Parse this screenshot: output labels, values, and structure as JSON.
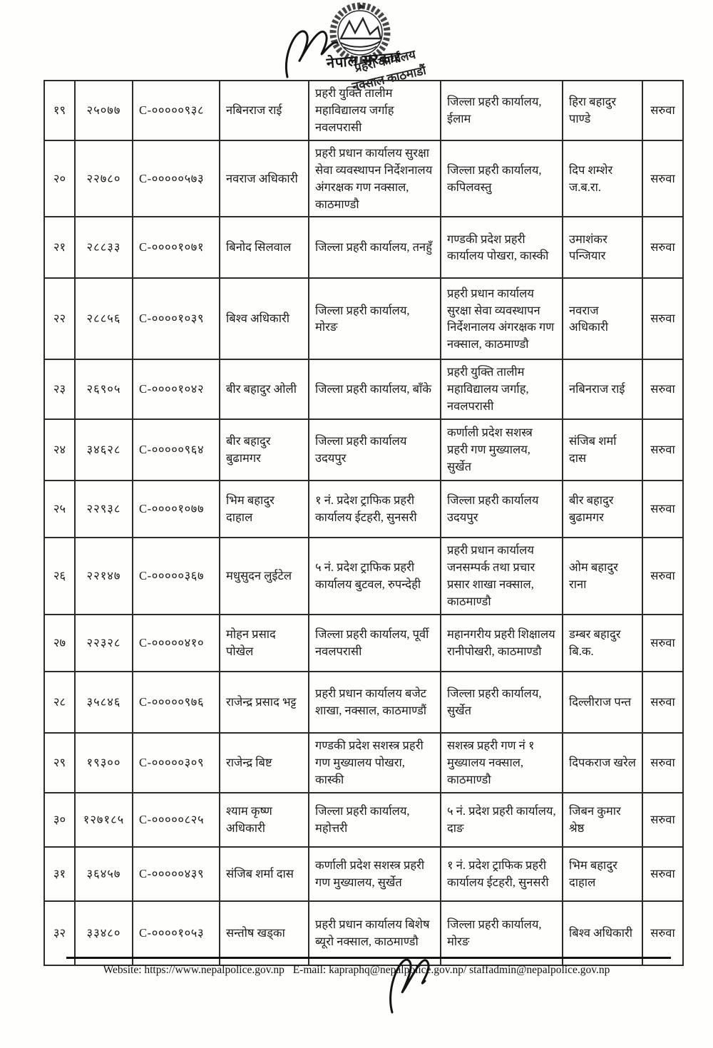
{
  "header": {
    "emblem_caption": "नेपाल सरकार",
    "stamp": {
      "line1": "प्रहरी कार्यालय",
      "line2": "नक्साल काठमाडौं"
    }
  },
  "table": {
    "rows": [
      {
        "sn": "१९",
        "emp_no": "२५०७७",
        "code": "C-०००००९३८",
        "name": "नबिनराज राई",
        "from_office": "प्रहरी युक्ति तालीम महाविद्यालय जर्गाह नवलपरासी",
        "to_office": "जिल्ला प्रहरी कार्यालय, ईलाम",
        "replacement": "हिरा बहादुर पाण्डे",
        "action": "सरुवा"
      },
      {
        "sn": "२०",
        "emp_no": "२२७८०",
        "code": "C-०००००५७३",
        "name": "नवराज अधिकारी",
        "from_office": "प्रहरी प्रधान कार्यालय सुरक्षा सेवा व्यवस्थापन निर्देशनालय अंगरक्षक गण नक्साल, काठमाण्डौ",
        "to_office": "जिल्ला प्रहरी कार्यालय, कपिलवस्तु",
        "replacement": "दिप शम्शेर ज.ब.रा.",
        "action": "सरुवा"
      },
      {
        "sn": "२१",
        "emp_no": "२८८३३",
        "code": "C-००००१०७१",
        "name": "बिनोद सिलवाल",
        "from_office": "जिल्ला प्रहरी कार्यालय, तनहुँ",
        "to_office": "गण्डकी प्रदेश प्रहरी कार्यालय पोखरा, कास्की",
        "replacement": "उमाशंकर पन्जियार",
        "action": "सरुवा"
      },
      {
        "sn": "२२",
        "emp_no": "२८८५६",
        "code": "C-००००१०३९",
        "name": "बिश्व अधिकारी",
        "from_office": "जिल्ला प्रहरी कार्यालय, मोरङ",
        "to_office": "प्रहरी प्रधान कार्यालय सुरक्षा सेवा व्यवस्थापन निर्देशनालय अंगरक्षक गण नक्साल, काठमाण्डौ",
        "replacement": "नवराज अधिकारी",
        "action": "सरुवा"
      },
      {
        "sn": "२३",
        "emp_no": "२६९०५",
        "code": "C-००००१०४२",
        "name": "बीर बहादुर ओली",
        "from_office": "जिल्ला प्रहरी कार्यालय, बाँके",
        "to_office": "प्रहरी युक्ति तालीम महाविद्यालय जर्गाह, नवलपरासी",
        "replacement": "नबिनराज राई",
        "action": "सरुवा"
      },
      {
        "sn": "२४",
        "emp_no": "३४६२८",
        "code": "C-०००००९६४",
        "name": "बीर बहादुर बुढामगर",
        "from_office": "जिल्ला प्रहरी कार्यालय उदयपुर",
        "to_office": "कर्णाली प्रदेश सशस्त्र प्रहरी गण मुख्यालय, सुर्खेत",
        "replacement": "संजिब शर्मा दास",
        "action": "सरुवा"
      },
      {
        "sn": "२५",
        "emp_no": "२२९३८",
        "code": "C-००००१०७७",
        "name": "भिम बहादुर दाहाल",
        "from_office": "१ नं. प्रदेश ट्राफिक प्रहरी कार्यालय ईटहरी, सुनसरी",
        "to_office": "जिल्ला प्रहरी कार्यालय उदयपुर",
        "replacement": "बीर बहादुर बुढामगर",
        "action": "सरुवा"
      },
      {
        "sn": "२६",
        "emp_no": "२२१४७",
        "code": "C-०००००३६७",
        "name": "मधुसुदन लुईटेल",
        "from_office": "५ नं. प्रदेश ट्राफिक प्रहरी कार्यालय बुटवल, रुपन्देही",
        "to_office": "प्रहरी प्रधान कार्यालय जनसम्पर्क तथा प्रचार प्रसार शाखा नक्साल, काठमाण्डौ",
        "replacement": "ओम बहादुर राना",
        "action": "सरुवा"
      },
      {
        "sn": "२७",
        "emp_no": "२२३२८",
        "code": "C-०००००४१०",
        "name": "मोहन प्रसाद पोखेल",
        "from_office": "जिल्ला प्रहरी कार्यालय, पूर्वी नवलपरासी",
        "to_office": "महानगरीय प्रहरी शिक्षालय रानीपोखरी, काठमाण्डौ",
        "replacement": "डम्बर बहादुर बि.क.",
        "action": "सरुवा"
      },
      {
        "sn": "२८",
        "emp_no": "३५८४६",
        "code": "C-०००००९७६",
        "name": "राजेन्द्र प्रसाद भट्ट",
        "from_office": "प्रहरी प्रधान कार्यालय बजेट शाखा, नक्साल, काठमाण्डौं",
        "to_office": "जिल्ला प्रहरी कार्यालय, सुर्खेत",
        "replacement": "दिल्लीराज पन्त",
        "action": "सरुवा"
      },
      {
        "sn": "२९",
        "emp_no": "१९३००",
        "code": "C-०००००३०९",
        "name": "राजेन्द्र बिष्ट",
        "from_office": "गण्डकी प्रदेश सशस्त्र प्रहरी गण मुख्यालय पोखरा, कास्की",
        "to_office": "सशस्त्र प्रहरी गण नं १ मुख्यालय नक्साल, काठमाण्डौ",
        "replacement": "दिपकराज खरेल",
        "action": "सरुवा"
      },
      {
        "sn": "३०",
        "emp_no": "१२७१८५",
        "code": "C-०००००८२५",
        "name": "श्याम कृष्ण अधिकारी",
        "from_office": "जिल्ला प्रहरी कार्यालय, महोत्तरी",
        "to_office": "५ नं. प्रदेश प्रहरी कार्यालय, दाङ",
        "replacement": "जिबन कुमार श्रेष्ठ",
        "action": "सरुवा"
      },
      {
        "sn": "३१",
        "emp_no": "३६४५७",
        "code": "C-०००००४३९",
        "name": "संजिब शर्मा दास",
        "from_office": "कर्णाली प्रदेश सशस्त्र प्रहरी गण मुख्यालय, सुर्खेत",
        "to_office": "१ नं. प्रदेश ट्राफिक प्रहरी कार्यालय ईटहरी, सुनसरी",
        "replacement": "भिम बहादुर दाहाल",
        "action": "सरुवा"
      },
      {
        "sn": "३२",
        "emp_no": "३३४८०",
        "code": "C-००००१०५३",
        "name": "सन्तोष खड्का",
        "from_office": "प्रहरी प्रधान कार्यालय बिशेष ब्यूरो नक्साल, काठमाण्डौ",
        "to_office": "जिल्ला प्रहरी कार्यालय, मोरङ",
        "replacement": "बिश्व अधिकारी",
        "action": "सरुवा"
      }
    ]
  },
  "footer": {
    "website_text": "Website: https://www.nepalpolice.gov.np",
    "email_text": "E-mail: kapraphq@nepalpolice.gov.np/ staffadmin@nepalpolice.gov.np"
  }
}
